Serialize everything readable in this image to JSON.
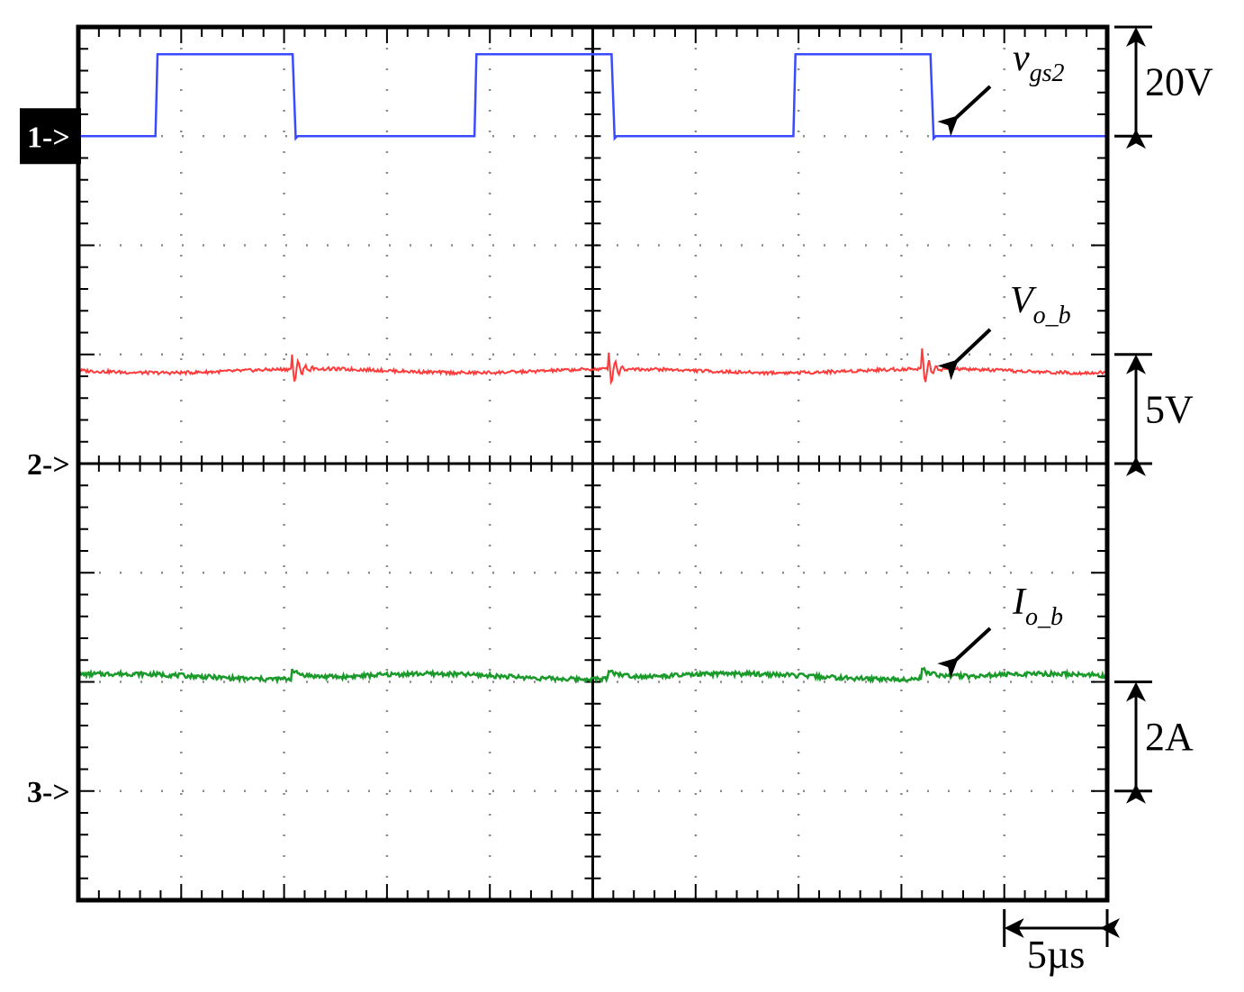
{
  "chart_data": {
    "type": "line",
    "title": "",
    "grid": true,
    "x_divisions": 10,
    "y_divisions": 8,
    "time_per_division": "5µs",
    "series": [
      {
        "name": "v_gs2",
        "label_main": "v",
        "label_sub": "gs2",
        "color": "#3a4bff",
        "channel_marker": "1",
        "scale": "20V",
        "low_div": 7.0,
        "high_div": 7.75,
        "period_div": 3.1,
        "duty": 0.43,
        "first_rise_div": 0.75
      },
      {
        "name": "V_o_b",
        "label_main": "V",
        "label_sub": "o_b",
        "color": "#ff3b3b",
        "channel_marker": "2",
        "scale": "5V",
        "level_div": 4.85,
        "ripple_div": 0.03,
        "spike_at_div": [
          2.07,
          5.15,
          8.2
        ]
      },
      {
        "name": "I_o_b",
        "label_main": "I",
        "label_sub": "o_b",
        "color": "#1a9a2a",
        "channel_marker": "3",
        "scale": "2A",
        "level_div": 2.05,
        "ripple_div": 0.04,
        "spike_at_div": [
          2.07,
          5.15,
          8.2
        ]
      }
    ],
    "scale_labels": [
      "20V",
      "5V",
      "2A",
      "5µs"
    ]
  }
}
